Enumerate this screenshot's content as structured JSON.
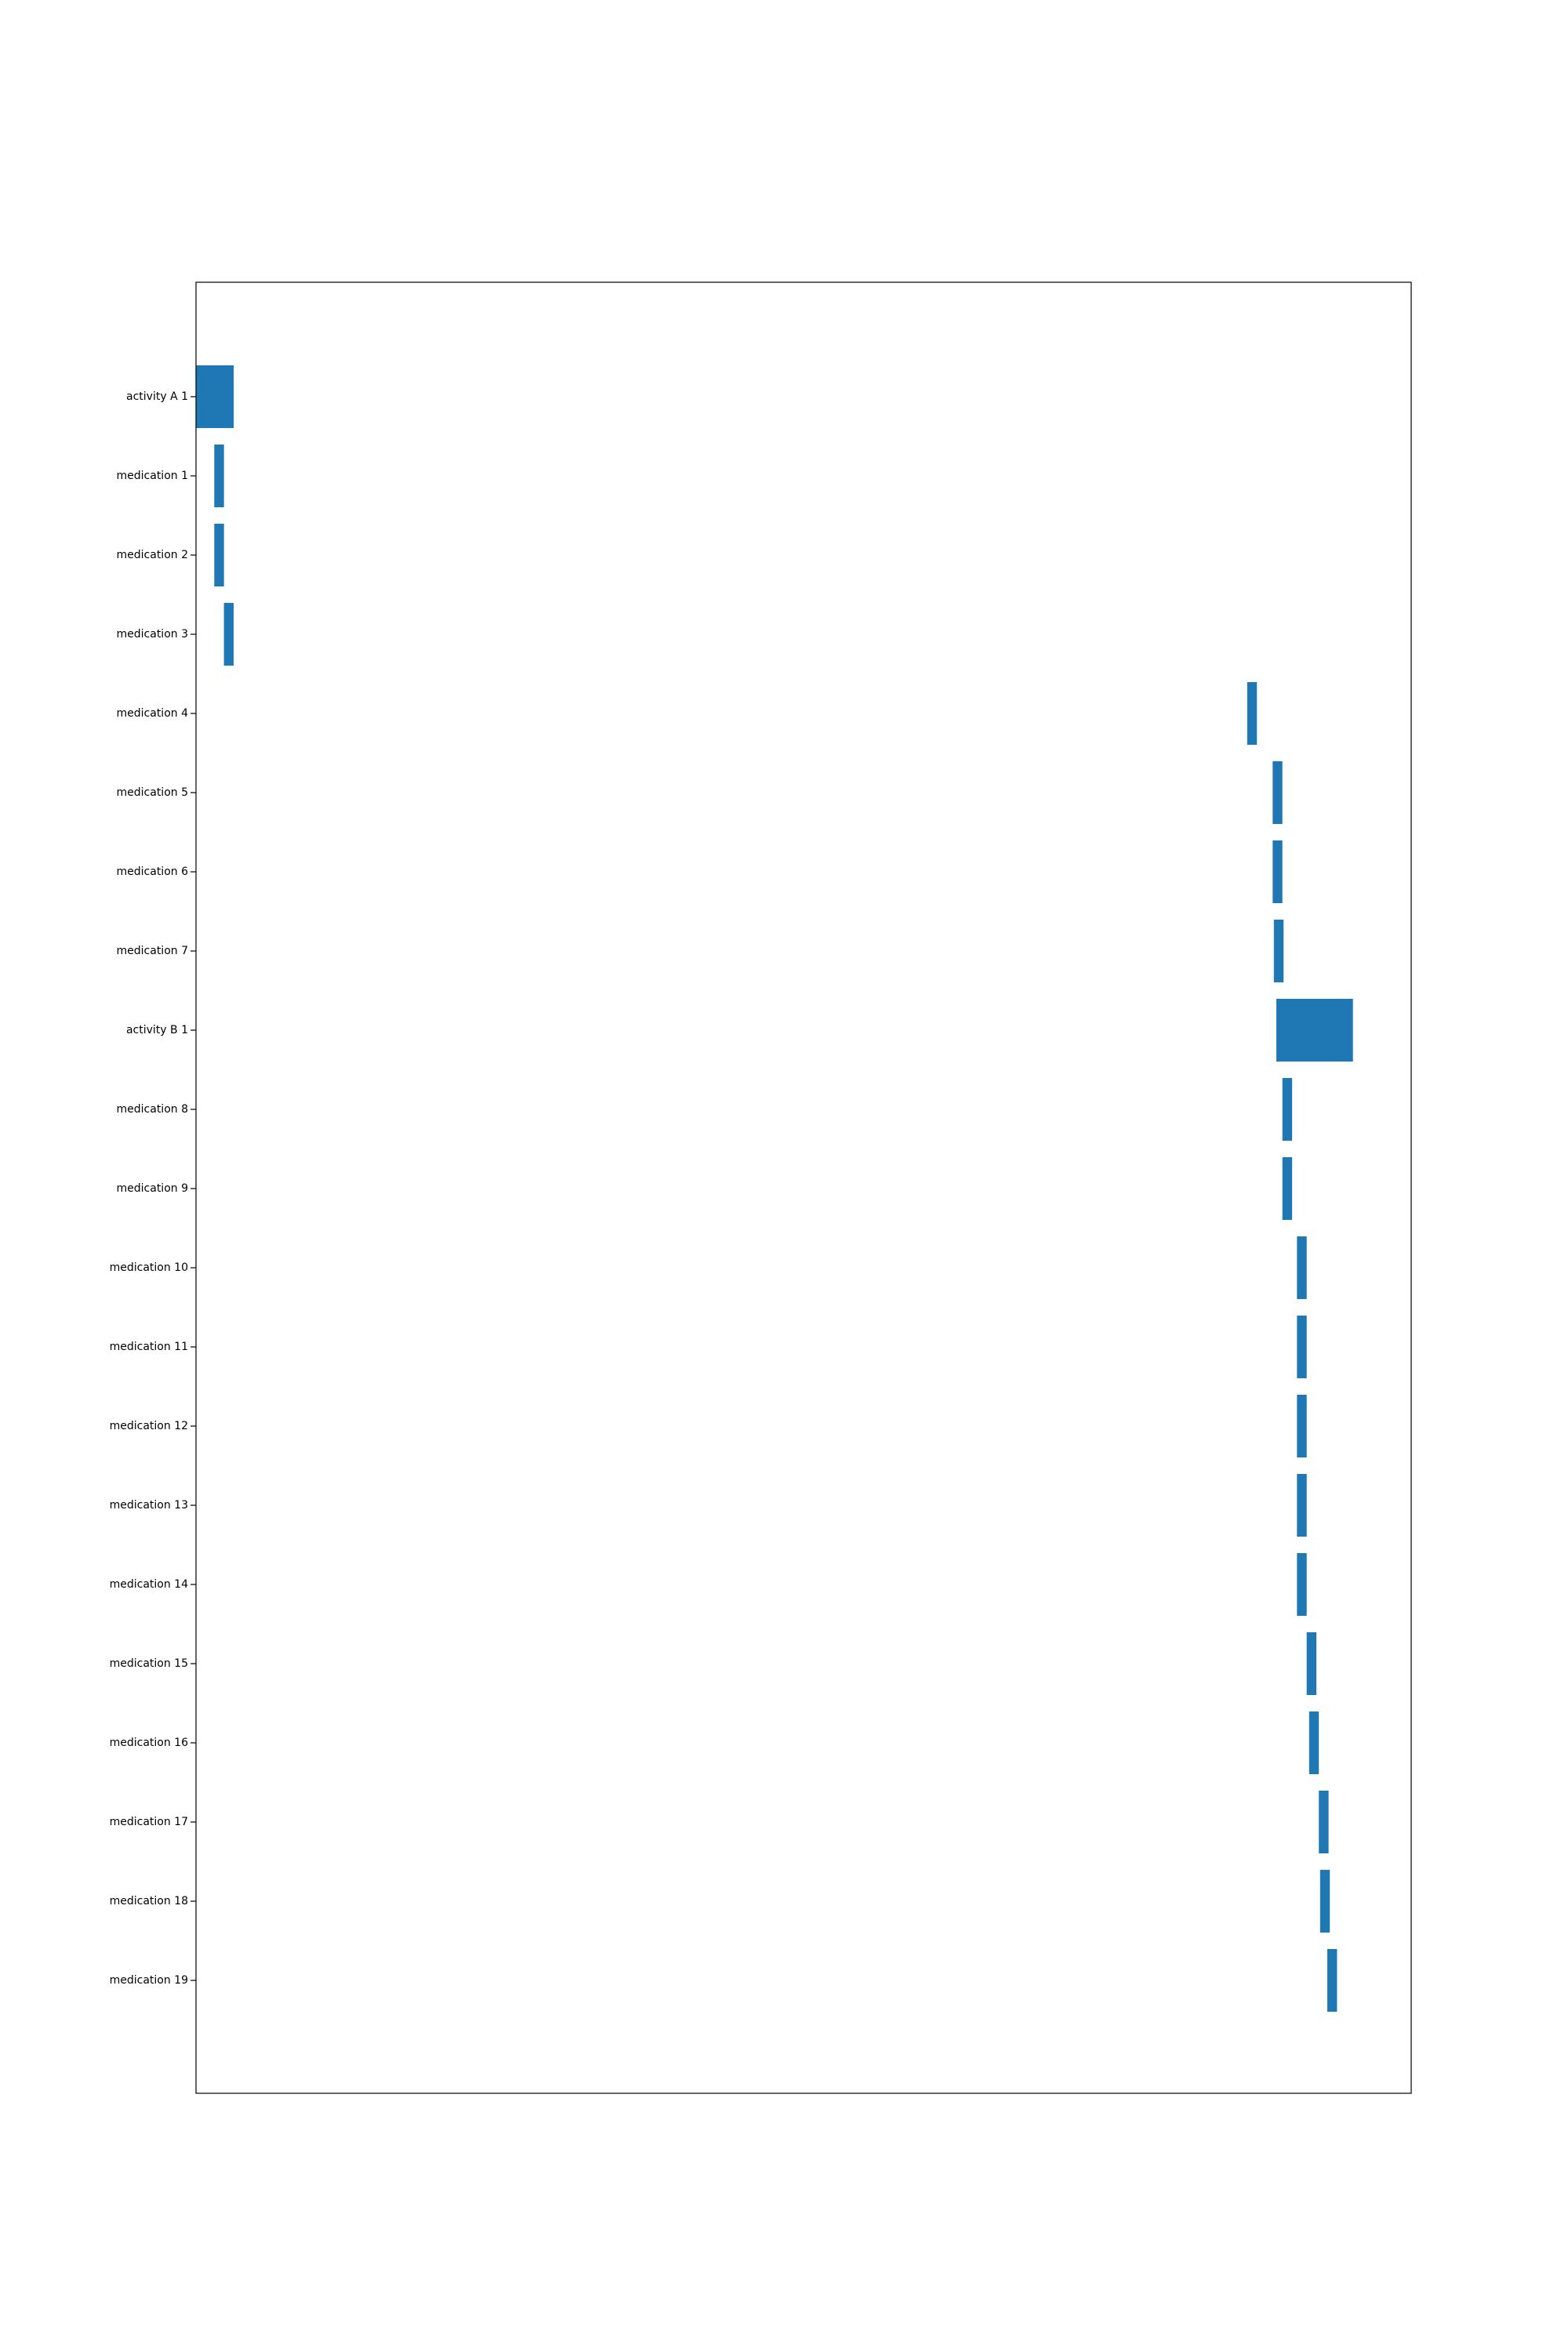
{
  "chart_data": {
    "type": "bar",
    "orientation": "horizontal",
    "title": "",
    "xlabel": "",
    "ylabel": "",
    "x_ticks_shown": false,
    "grid": false,
    "legend": "none",
    "bar_color": "#1f77b4",
    "xlim": [
      0,
      100
    ],
    "categories": [
      "activity A 1",
      "medication 1",
      "medication 2",
      "medication 3",
      "medication 4",
      "medication 5",
      "medication 6",
      "medication 7",
      "activity B 1",
      "medication 8",
      "medication 9",
      "medication 10",
      "medication 11",
      "medication 12",
      "medication 13",
      "medication 14",
      "medication 15",
      "medication 16",
      "medication 17",
      "medication 18",
      "medication 19"
    ],
    "starts": [
      0.0,
      1.5,
      1.5,
      2.3,
      86.5,
      88.6,
      88.6,
      88.7,
      88.9,
      89.4,
      89.4,
      90.6,
      90.6,
      90.6,
      90.6,
      90.6,
      91.4,
      91.6,
      92.4,
      92.5,
      93.1
    ],
    "durations": [
      3.1,
      0.8,
      0.8,
      0.8,
      0.8,
      0.8,
      0.8,
      0.8,
      6.3,
      0.8,
      0.8,
      0.8,
      0.8,
      0.8,
      0.8,
      0.8,
      0.8,
      0.8,
      0.8,
      0.8,
      0.8
    ]
  }
}
